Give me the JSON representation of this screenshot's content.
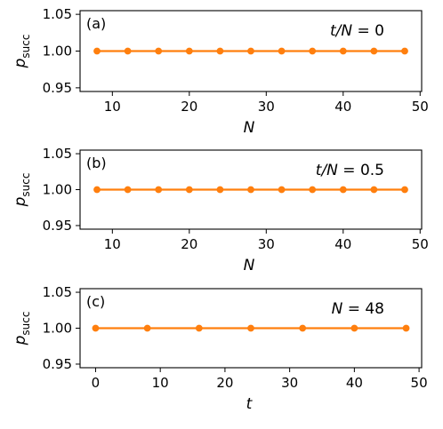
{
  "chart_data": [
    {
      "type": "line",
      "panel_label": "(a)",
      "annotation": "t/N = 0",
      "xlabel": "N",
      "ylabel": "p_succ",
      "xlim": [
        5.8,
        50.2
      ],
      "ylim": [
        0.945,
        1.055
      ],
      "xticks": [
        10,
        20,
        30,
        40,
        50
      ],
      "yticks": [
        0.95,
        1.0,
        1.05
      ],
      "ytick_labels": [
        "0.95",
        "1.00",
        "1.05"
      ],
      "color": "#ff7f0e",
      "x": [
        8,
        12,
        16,
        20,
        24,
        28,
        32,
        36,
        40,
        44,
        48
      ],
      "y": [
        1.0,
        1.0,
        1.0,
        1.0,
        1.0,
        1.0,
        1.0,
        1.0,
        1.0,
        1.0,
        1.0
      ]
    },
    {
      "type": "line",
      "panel_label": "(b)",
      "annotation": "t/N = 0.5",
      "xlabel": "N",
      "ylabel": "p_succ",
      "xlim": [
        5.8,
        50.2
      ],
      "ylim": [
        0.945,
        1.055
      ],
      "xticks": [
        10,
        20,
        30,
        40,
        50
      ],
      "yticks": [
        0.95,
        1.0,
        1.05
      ],
      "ytick_labels": [
        "0.95",
        "1.00",
        "1.05"
      ],
      "color": "#ff7f0e",
      "x": [
        8,
        12,
        16,
        20,
        24,
        28,
        32,
        36,
        40,
        44,
        48
      ],
      "y": [
        1.0,
        1.0,
        1.0,
        1.0,
        1.0,
        1.0,
        1.0,
        1.0,
        1.0,
        1.0,
        1.0
      ]
    },
    {
      "type": "line",
      "panel_label": "(c)",
      "annotation": "N = 48",
      "xlabel": "t",
      "ylabel": "p_succ",
      "xlim": [
        -2.4,
        50.4
      ],
      "ylim": [
        0.945,
        1.055
      ],
      "xticks": [
        0,
        10,
        20,
        30,
        40,
        50
      ],
      "yticks": [
        0.95,
        1.0,
        1.05
      ],
      "ytick_labels": [
        "0.95",
        "1.00",
        "1.05"
      ],
      "color": "#ff7f0e",
      "x": [
        0,
        8,
        16,
        24,
        32,
        40,
        48
      ],
      "y": [
        1.0,
        1.0,
        1.0,
        1.0,
        1.0,
        1.0,
        1.0
      ]
    }
  ]
}
